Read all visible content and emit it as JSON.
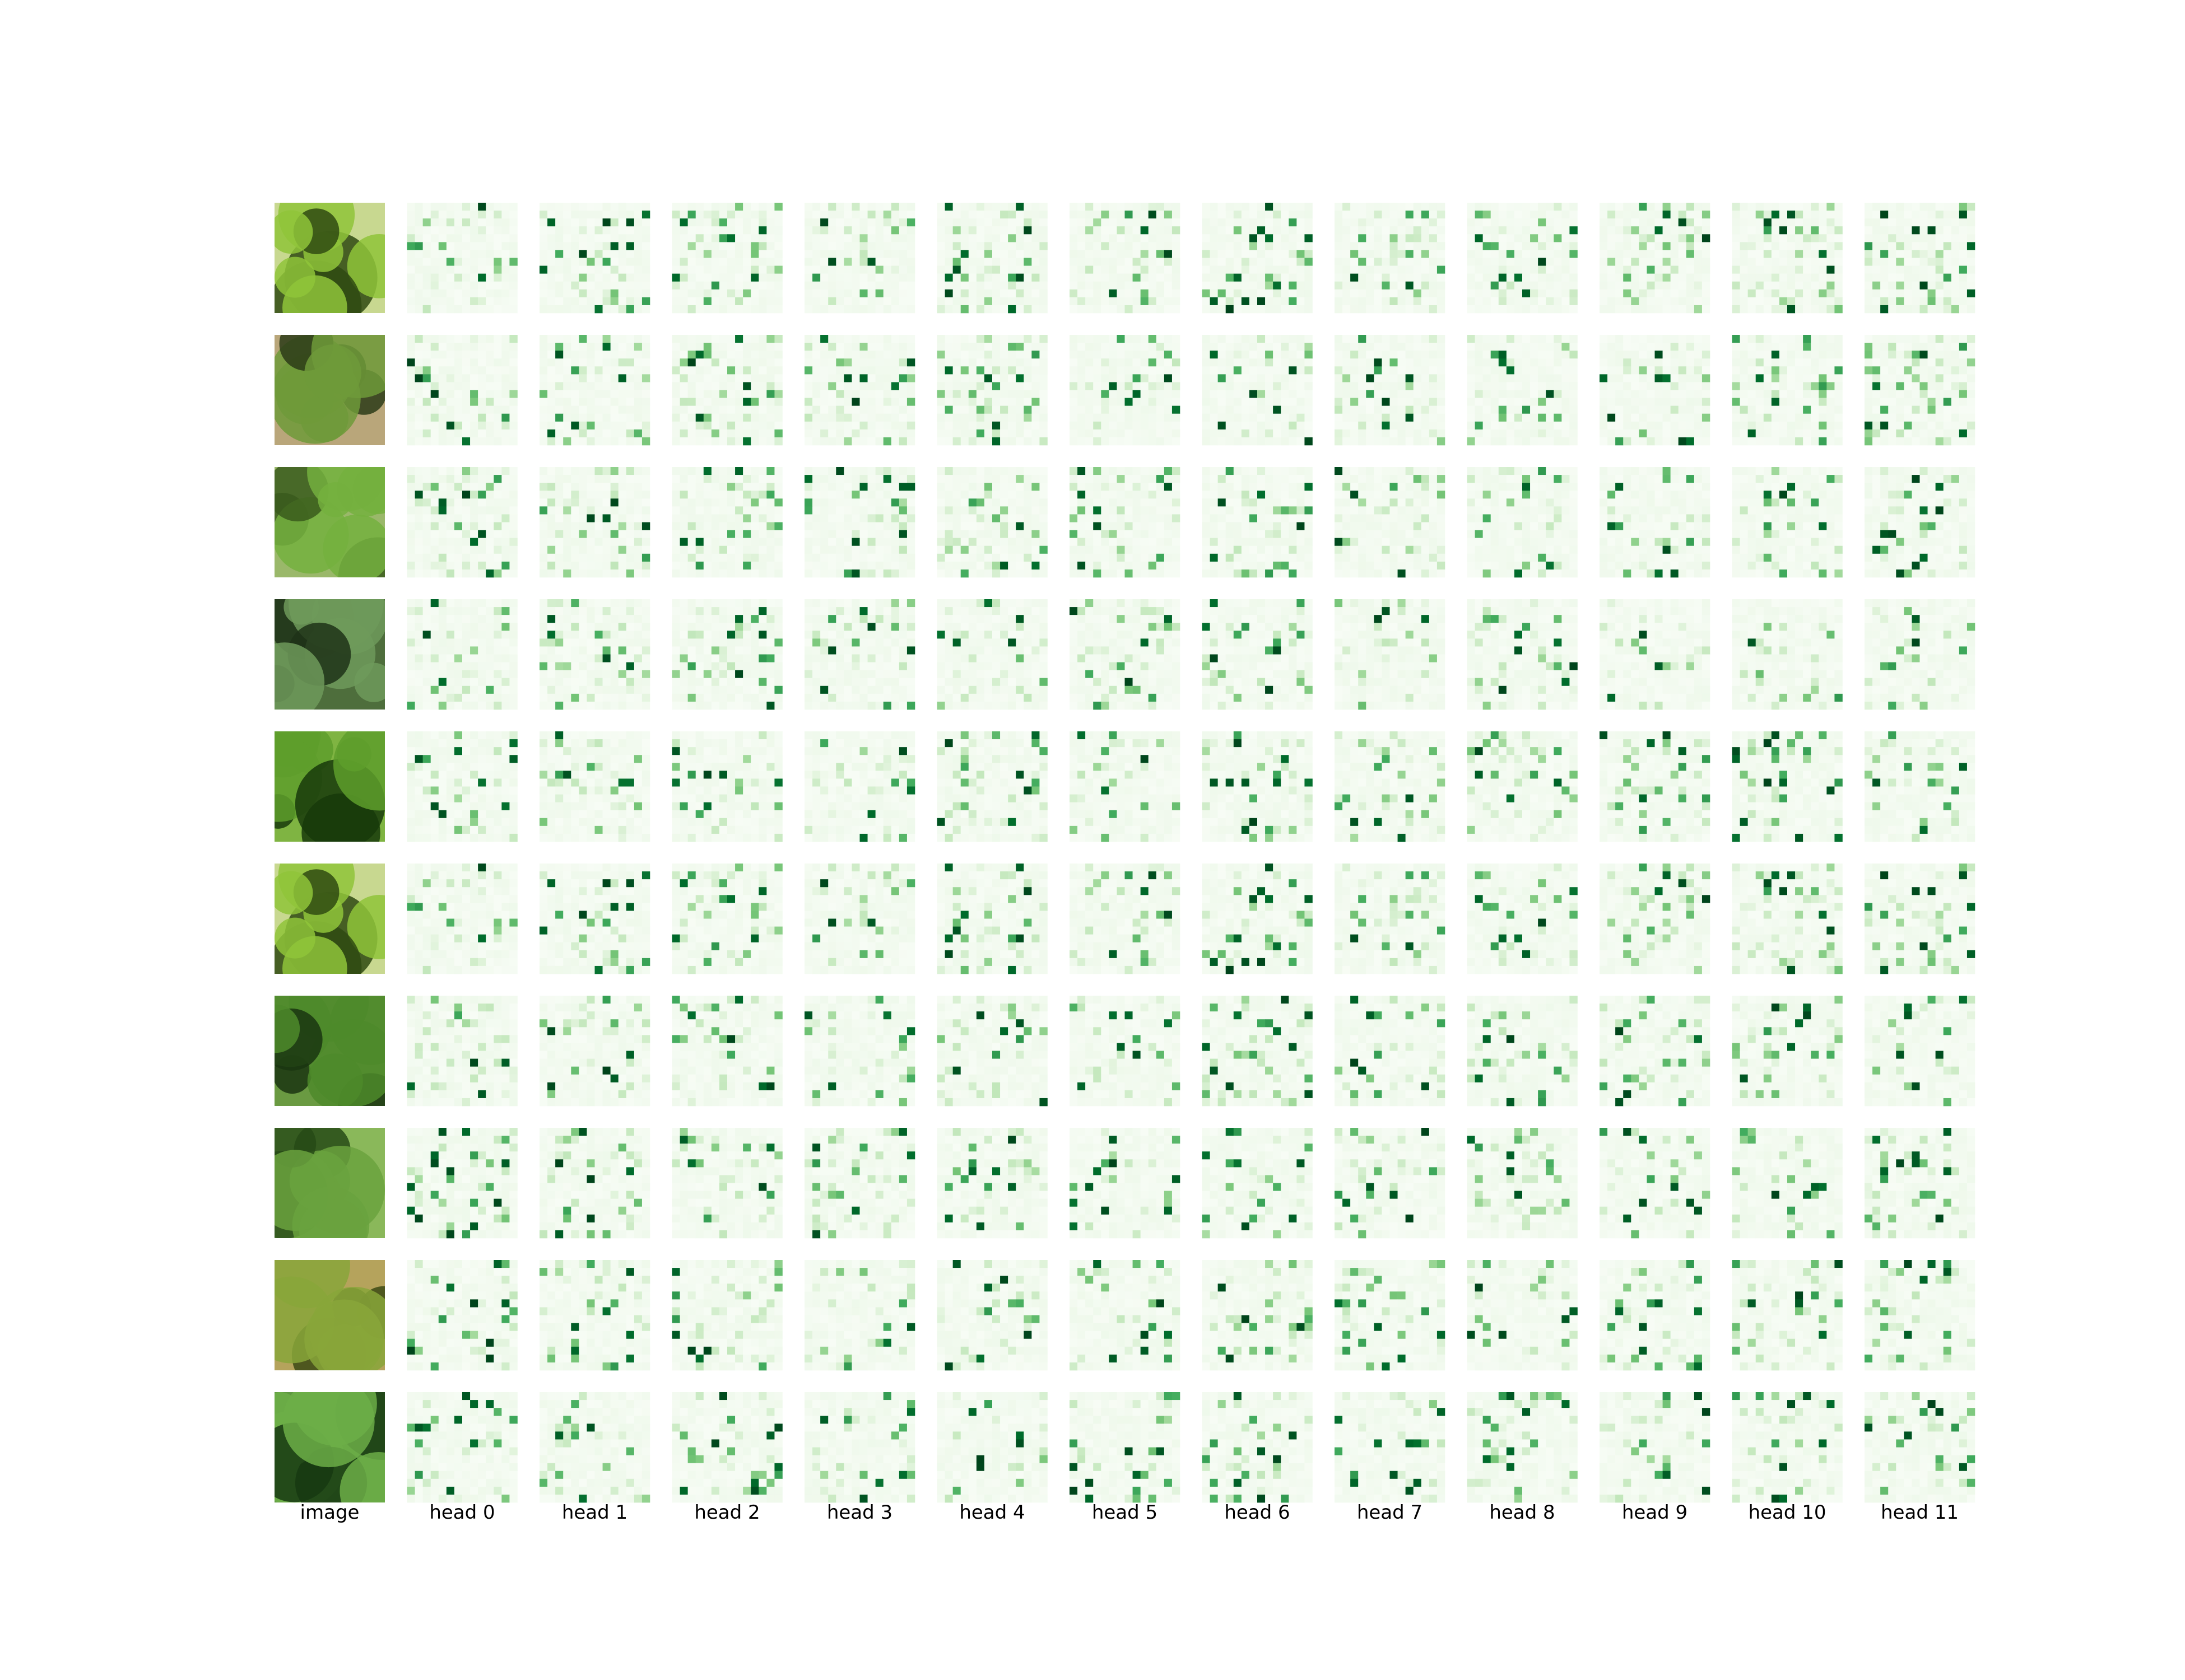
{
  "chart_data": {
    "type": "heatmap",
    "title": "",
    "colormap": "Greens",
    "grid_size": 14,
    "row_count": 10,
    "column_labels": [
      "image",
      "head 0",
      "head 1",
      "head 2",
      "head 3",
      "head 4",
      "head 5",
      "head 6",
      "head 7",
      "head 8",
      "head 9",
      "head 10",
      "head 11"
    ],
    "heads": [
      "head 0",
      "head 1",
      "head 2",
      "head 3",
      "head 4",
      "head 5",
      "head 6",
      "head 7",
      "head 8",
      "head 9",
      "head 10",
      "head 11"
    ],
    "rows": [
      {
        "thumbnail": {
          "sky": "#c8d890",
          "leaf": "#8fc43a",
          "dark": "#2f4a12"
        },
        "seed": 101
      },
      {
        "thumbnail": {
          "sky": "#b9a67a",
          "leaf": "#6f9a3a",
          "dark": "#2c3b18"
        },
        "seed": 211
      },
      {
        "thumbnail": {
          "sky": "#9ab86a",
          "leaf": "#74b03e",
          "dark": "#3a5a1c"
        },
        "seed": 307
      },
      {
        "thumbnail": {
          "sky": "#4e6e3c",
          "leaf": "#6e9a5a",
          "dark": "#1e3318"
        },
        "seed": 401
      },
      {
        "thumbnail": {
          "sky": "#7fb442",
          "leaf": "#5e9e2c",
          "dark": "#173a0a"
        },
        "seed": 503
      },
      {
        "thumbnail": {
          "sky": "#c8d890",
          "leaf": "#8fc43a",
          "dark": "#2f4a12"
        },
        "seed": 101
      },
      {
        "thumbnail": {
          "sky": "#6a9a42",
          "leaf": "#4e8a2a",
          "dark": "#1a3510"
        },
        "seed": 709
      },
      {
        "thumbnail": {
          "sky": "#8ab85a",
          "leaf": "#6aa23e",
          "dark": "#264a16"
        },
        "seed": 809
      },
      {
        "thumbnail": {
          "sky": "#b5a35c",
          "leaf": "#88a63a",
          "dark": "#3c4a14"
        },
        "seed": 907
      },
      {
        "thumbnail": {
          "sky": "#5e9840",
          "leaf": "#6cae48",
          "dark": "#163812"
        },
        "seed": 1009
      }
    ],
    "value_range": [
      0,
      1
    ],
    "xlabel": "",
    "ylabel": ""
  }
}
